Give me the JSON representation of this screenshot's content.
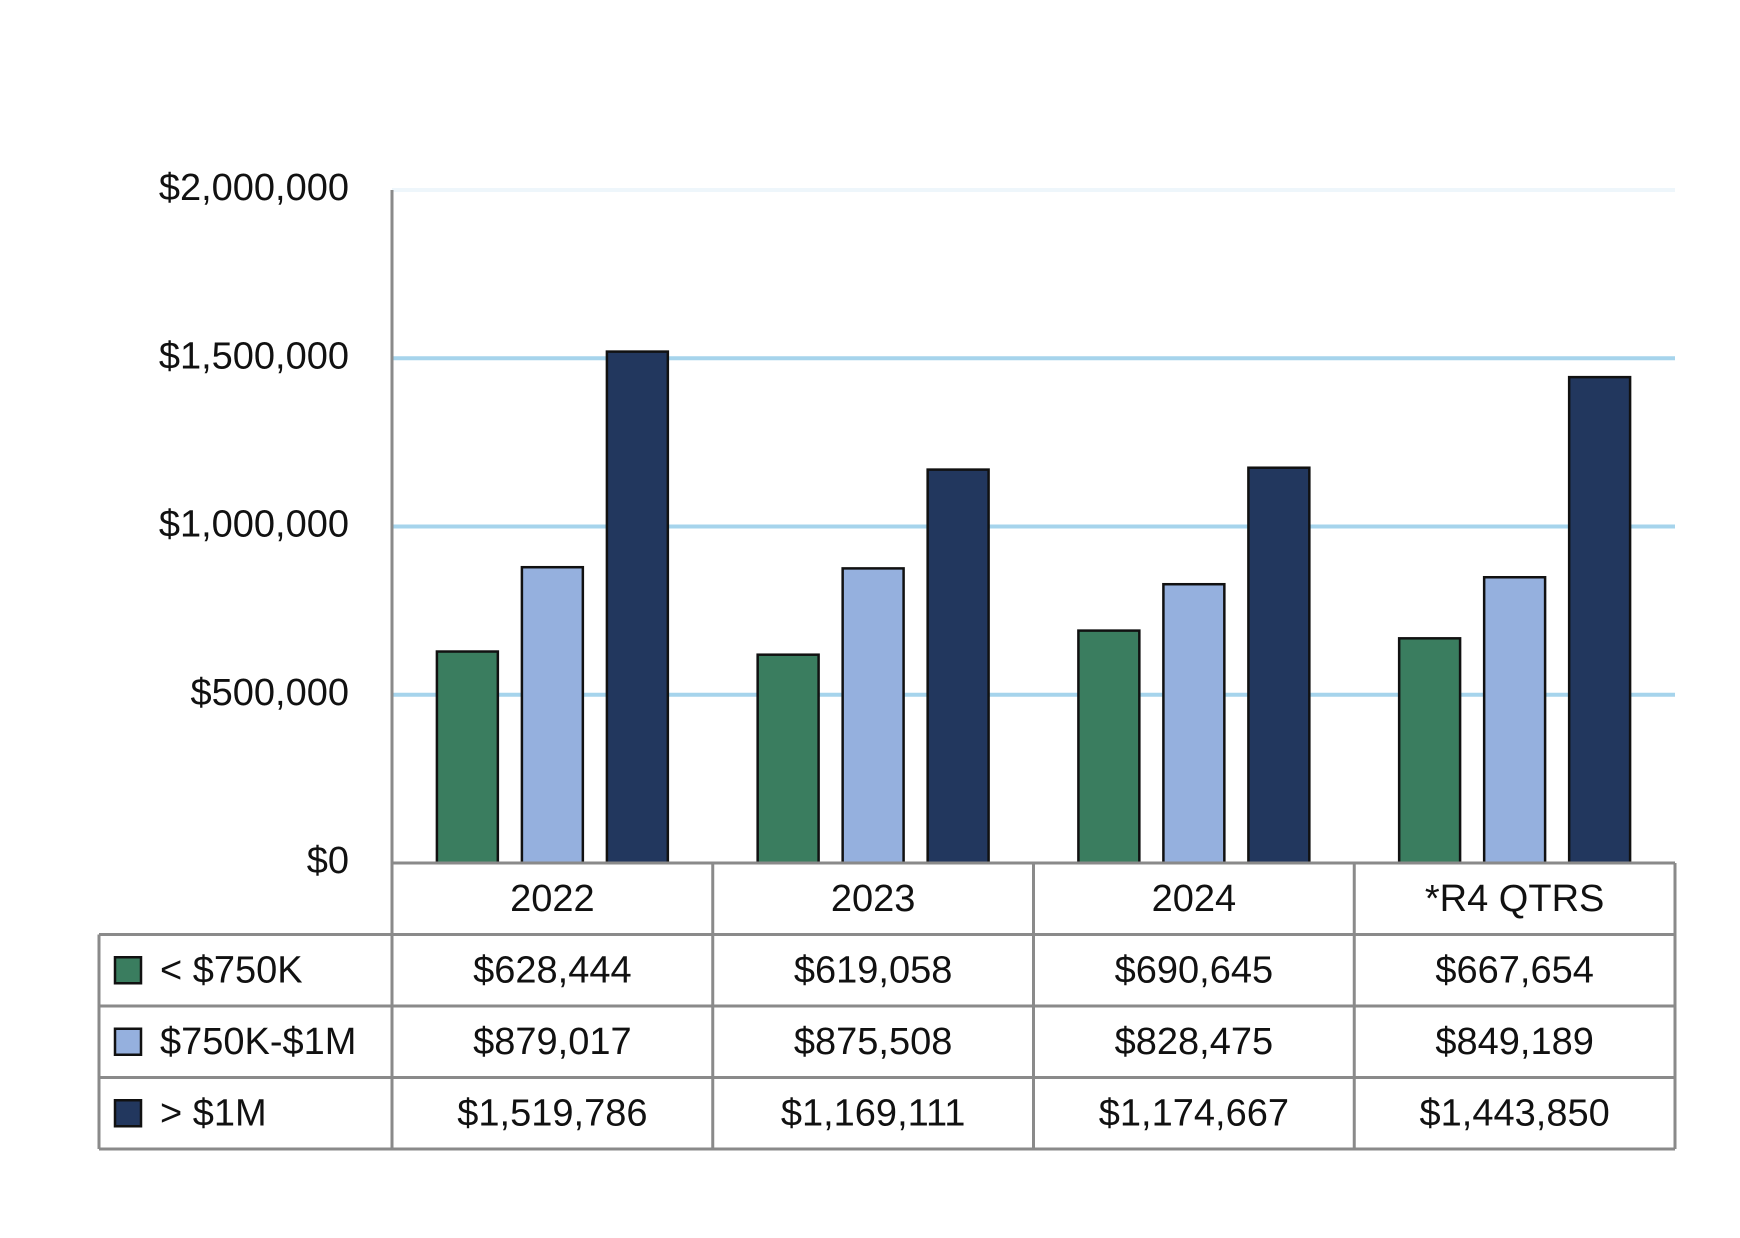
{
  "chart_data": {
    "type": "bar",
    "categories": [
      "2022",
      "2023",
      "2024",
      "*R4 QTRS"
    ],
    "series": [
      {
        "name": "< $750K",
        "color": "#3a7d5f",
        "values": [
          628444,
          619058,
          690645,
          667654
        ],
        "value_labels": [
          "$628,444",
          "$619,058",
          "$690,645",
          "$667,654"
        ]
      },
      {
        "name": "$750K-$1M",
        "color": "#95b0de",
        "values": [
          879017,
          875508,
          828475,
          849189
        ],
        "value_labels": [
          "$879,017",
          "$875,508",
          "$828,475",
          "$849,189"
        ]
      },
      {
        "name": "> $1M",
        "color": "#22375e",
        "values": [
          1519786,
          1169111,
          1174667,
          1443850
        ],
        "value_labels": [
          "$1,519,786",
          "$1,169,111",
          "$1,174,667",
          "$1,443,850"
        ]
      }
    ],
    "ylim": [
      0,
      2000000
    ],
    "yticks": [
      {
        "value": 0,
        "label": "$0"
      },
      {
        "value": 500000,
        "label": "$500,000"
      },
      {
        "value": 1000000,
        "label": "$1,000,000"
      },
      {
        "value": 1500000,
        "label": "$1,500,000"
      },
      {
        "value": 2000000,
        "label": "$2,000,000"
      }
    ],
    "grid": true
  }
}
